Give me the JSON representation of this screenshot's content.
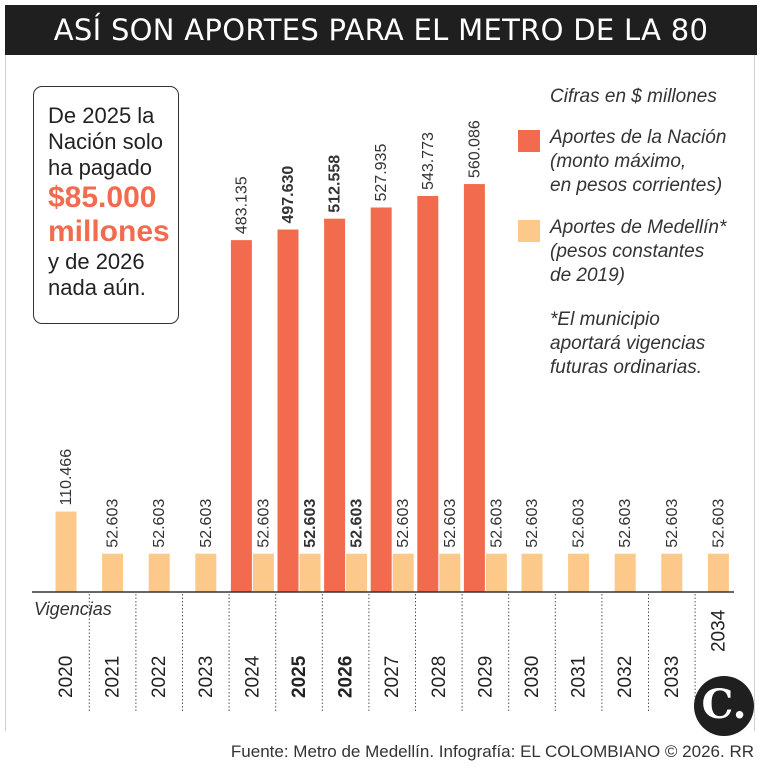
{
  "title": "ASÍ SON APORTES PARA EL METRO DE LA 80",
  "callout": {
    "line1": "De 2025 la",
    "line2": "Nación solo",
    "line3": "ha pagado",
    "highlight1": "$85.000",
    "highlight2": "millones",
    "line4": "y de 2026",
    "line5": "nada aún."
  },
  "legend": {
    "units_note": "Cifras en $ millones",
    "nacion": [
      "Aportes de la Nación",
      "(monto máximo,",
      "en pesos corrientes)"
    ],
    "medellin": [
      "Aportes de Medellín*",
      "(pesos constantes",
      "de 2019)"
    ],
    "footnote": [
      "*El municipio",
      "aportará vigencias",
      "futuras ordinarias."
    ]
  },
  "source": "Fuente: Metro de Medellín. Infografía: EL COLOMBIANO © 2026. RR",
  "logo": "C.",
  "colors": {
    "nacion": "#f26b4e",
    "medellin": "#fcc98a",
    "title_bg": "#1f1f1f"
  },
  "chart_data": {
    "type": "bar",
    "xlabel": "Vigencias",
    "categories": [
      "2020",
      "2021",
      "2022",
      "2023",
      "2024",
      "2025",
      "2026",
      "2027",
      "2028",
      "2029",
      "2030",
      "2031",
      "2032",
      "2033",
      "2034"
    ],
    "bold_categories": [
      "2025",
      "2026"
    ],
    "series": [
      {
        "name": "Aportes de la Nación",
        "values": [
          null,
          null,
          null,
          null,
          483.135,
          497.63,
          512.558,
          527.935,
          543.773,
          560.086,
          null,
          null,
          null,
          null,
          null
        ],
        "labels": [
          "",
          "",
          "",
          "",
          "483.135",
          "497.630",
          "512.558",
          "527.935",
          "543.773",
          "560.086",
          "",
          "",
          "",
          "",
          ""
        ]
      },
      {
        "name": "Aportes de Medellín",
        "values": [
          110.466,
          52.603,
          52.603,
          52.603,
          52.603,
          52.603,
          52.603,
          52.603,
          52.603,
          52.603,
          52.603,
          52.603,
          52.603,
          52.603,
          52.603
        ],
        "labels": [
          "110.466",
          "52.603",
          "52.603",
          "52.603",
          "52.603",
          "52.603",
          "52.603",
          "52.603",
          "52.603",
          "52.603",
          "52.603",
          "52.603",
          "52.603",
          "52.603",
          "52.603"
        ]
      }
    ],
    "ylim": [
      0,
      600
    ],
    "grid": false
  }
}
